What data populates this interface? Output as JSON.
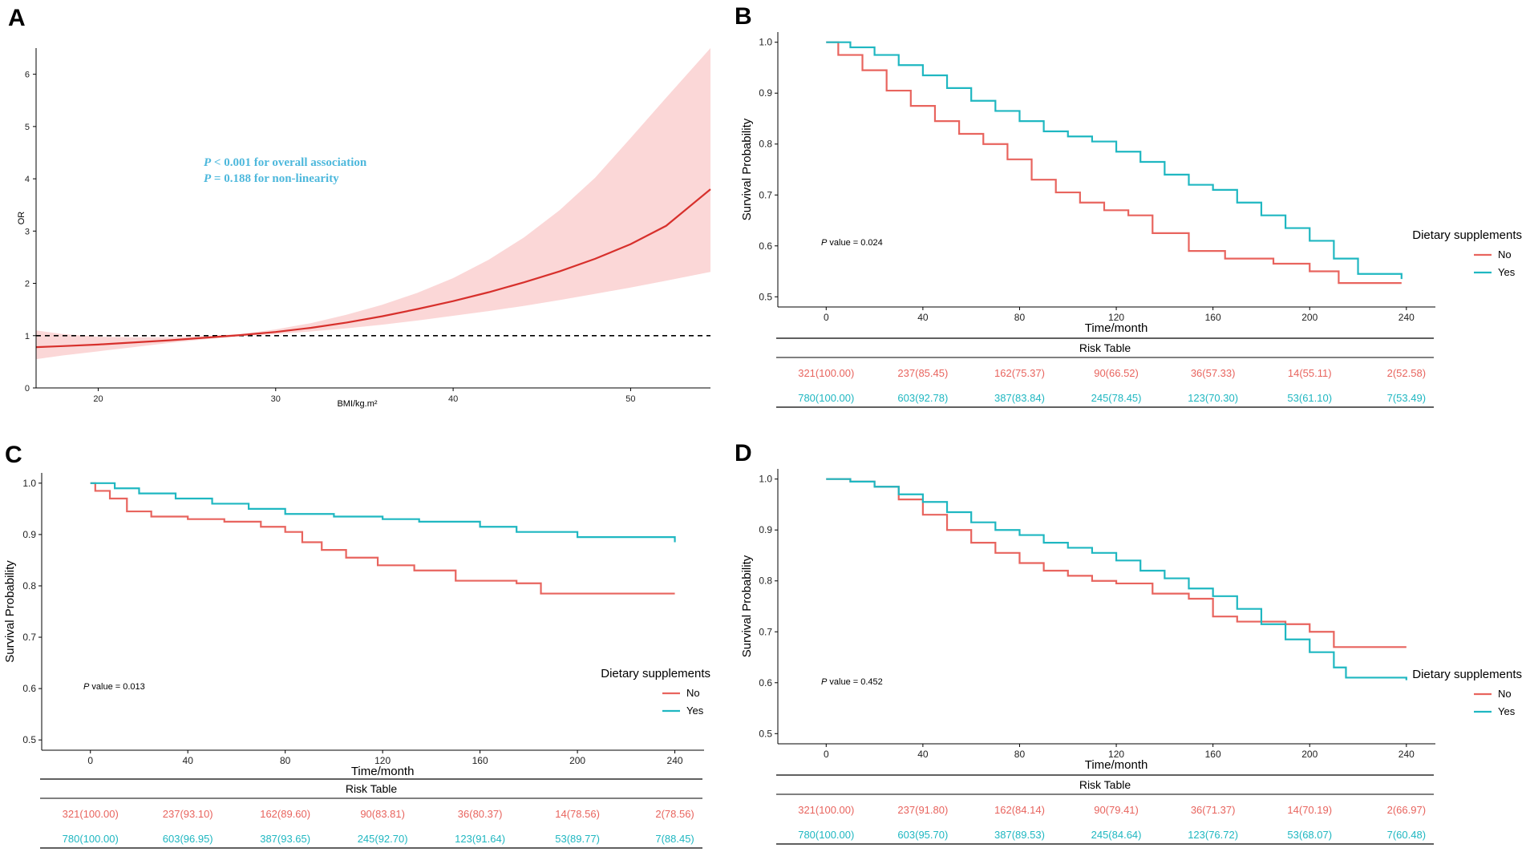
{
  "colors": {
    "no": "#e8645e",
    "yes": "#1fb7c1",
    "spline": "#d7302c",
    "ci": "#fbd7d7",
    "annot": "#4db8dc"
  },
  "chart_data": [
    {
      "id": "A",
      "type": "line",
      "panel_label": "A",
      "xlabel": "BMI/kg.m²",
      "ylabel": "OR",
      "xlim": [
        16.5,
        54.5
      ],
      "ylim": [
        0,
        6.5
      ],
      "xticks": [
        20,
        30,
        40,
        50
      ],
      "yticks": [
        0,
        1,
        2,
        3,
        4,
        5,
        6
      ],
      "reference_line": 1,
      "annotations": [
        {
          "p": "P",
          "text": " < 0.001 for overall association"
        },
        {
          "p": "P",
          "text": " = 0.188 for non-linearity"
        }
      ],
      "curve": {
        "x": [
          16.5,
          18,
          20,
          22,
          24,
          26,
          28,
          30,
          32,
          34,
          36,
          38,
          40,
          42,
          44,
          46,
          48,
          50,
          52,
          54.5
        ],
        "or": [
          0.78,
          0.8,
          0.83,
          0.87,
          0.91,
          0.96,
          1.01,
          1.07,
          1.15,
          1.25,
          1.37,
          1.51,
          1.66,
          1.83,
          2.02,
          2.23,
          2.47,
          2.75,
          3.1,
          3.8
        ],
        "lower": [
          0.55,
          0.62,
          0.7,
          0.78,
          0.86,
          0.93,
          0.99,
          1.03,
          1.08,
          1.14,
          1.21,
          1.29,
          1.38,
          1.47,
          1.57,
          1.68,
          1.8,
          1.92,
          2.05,
          2.22
        ],
        "upper": [
          1.1,
          1.03,
          0.98,
          0.97,
          0.97,
          0.99,
          1.03,
          1.12,
          1.24,
          1.4,
          1.59,
          1.82,
          2.1,
          2.45,
          2.88,
          3.4,
          4.02,
          4.78,
          5.55,
          6.5
        ]
      }
    },
    {
      "id": "B",
      "type": "line",
      "panel_label": "B",
      "xlabel": "Time/month",
      "ylabel": "Survival Probability",
      "xlim": [
        -20,
        252
      ],
      "ylim": [
        0.48,
        1.02
      ],
      "xticks": [
        0,
        40,
        80,
        120,
        160,
        200,
        240
      ],
      "yticks": [
        0.5,
        0.6,
        0.7,
        0.8,
        0.9,
        1.0
      ],
      "p_value": {
        "p": "P",
        "text": " value = 0.024"
      },
      "legend": {
        "title": "Dietary supplements",
        "labels": [
          "No",
          "Yes"
        ]
      },
      "series": [
        {
          "name": "No",
          "x": [
            0,
            5,
            15,
            25,
            35,
            45,
            55,
            65,
            75,
            85,
            95,
            105,
            115,
            125,
            135,
            150,
            165,
            185,
            200,
            212,
            238
          ],
          "y": [
            1.0,
            0.975,
            0.945,
            0.905,
            0.875,
            0.845,
            0.82,
            0.8,
            0.77,
            0.73,
            0.705,
            0.685,
            0.67,
            0.66,
            0.625,
            0.59,
            0.575,
            0.565,
            0.55,
            0.527,
            0.527
          ]
        },
        {
          "name": "Yes",
          "x": [
            0,
            10,
            20,
            30,
            40,
            50,
            60,
            70,
            80,
            90,
            100,
            110,
            120,
            130,
            140,
            150,
            160,
            170,
            180,
            190,
            200,
            210,
            220,
            238
          ],
          "y": [
            1.0,
            0.99,
            0.975,
            0.955,
            0.935,
            0.91,
            0.885,
            0.865,
            0.845,
            0.825,
            0.815,
            0.805,
            0.785,
            0.765,
            0.74,
            0.72,
            0.71,
            0.685,
            0.66,
            0.635,
            0.61,
            0.575,
            0.545,
            0.535
          ]
        }
      ],
      "risk_table": {
        "title": "Risk Table",
        "rows": [
          {
            "name": "No",
            "cells": [
              "321(100.00)",
              "237(85.45)",
              "162(75.37)",
              "90(66.52)",
              "36(57.33)",
              "14(55.11)",
              "2(52.58)"
            ]
          },
          {
            "name": "Yes",
            "cells": [
              "780(100.00)",
              "603(92.78)",
              "387(83.84)",
              "245(78.45)",
              "123(70.30)",
              "53(61.10)",
              "7(53.49)"
            ]
          }
        ]
      }
    },
    {
      "id": "C",
      "type": "line",
      "panel_label": "C",
      "xlabel": "Time/month",
      "ylabel": "Survival Probability",
      "xlim": [
        -20,
        252
      ],
      "ylim": [
        0.48,
        1.02
      ],
      "xticks": [
        0,
        40,
        80,
        120,
        160,
        200,
        240
      ],
      "yticks": [
        0.5,
        0.6,
        0.7,
        0.8,
        0.9,
        1.0
      ],
      "p_value": {
        "p": "P",
        "text": " value = 0.013"
      },
      "legend": {
        "title": "Dietary supplements",
        "labels": [
          "No",
          "Yes"
        ]
      },
      "series": [
        {
          "name": "No",
          "x": [
            0,
            2,
            8,
            15,
            25,
            40,
            55,
            70,
            80,
            87,
            95,
            105,
            118,
            133,
            150,
            175,
            185,
            240
          ],
          "y": [
            1.0,
            0.985,
            0.97,
            0.945,
            0.935,
            0.93,
            0.925,
            0.915,
            0.905,
            0.885,
            0.87,
            0.855,
            0.84,
            0.83,
            0.81,
            0.805,
            0.785,
            0.785
          ]
        },
        {
          "name": "Yes",
          "x": [
            0,
            10,
            20,
            35,
            50,
            65,
            80,
            100,
            120,
            135,
            160,
            175,
            200,
            240
          ],
          "y": [
            1.0,
            0.99,
            0.98,
            0.97,
            0.96,
            0.95,
            0.94,
            0.935,
            0.93,
            0.925,
            0.915,
            0.905,
            0.895,
            0.885
          ]
        }
      ],
      "risk_table": {
        "title": "Risk Table",
        "rows": [
          {
            "name": "No",
            "cells": [
              "321(100.00)",
              "237(93.10)",
              "162(89.60)",
              "90(83.81)",
              "36(80.37)",
              "14(78.56)",
              "2(78.56)"
            ]
          },
          {
            "name": "Yes",
            "cells": [
              "780(100.00)",
              "603(96.95)",
              "387(93.65)",
              "245(92.70)",
              "123(91.64)",
              "53(89.77)",
              "7(88.45)"
            ]
          }
        ]
      }
    },
    {
      "id": "D",
      "type": "line",
      "panel_label": "D",
      "xlabel": "Time/month",
      "ylabel": "Survival Probability",
      "xlim": [
        -20,
        252
      ],
      "ylim": [
        0.48,
        1.02
      ],
      "xticks": [
        0,
        40,
        80,
        120,
        160,
        200,
        240
      ],
      "yticks": [
        0.5,
        0.6,
        0.7,
        0.8,
        0.9,
        1.0
      ],
      "p_value": {
        "p": "P",
        "text": " value = 0.452"
      },
      "legend": {
        "title": "Dietary supplements",
        "labels": [
          "No",
          "Yes"
        ]
      },
      "series": [
        {
          "name": "No",
          "x": [
            0,
            10,
            20,
            30,
            40,
            50,
            60,
            70,
            80,
            90,
            100,
            110,
            120,
            135,
            150,
            160,
            170,
            190,
            200,
            210,
            240
          ],
          "y": [
            1.0,
            0.995,
            0.985,
            0.96,
            0.93,
            0.9,
            0.875,
            0.855,
            0.835,
            0.82,
            0.81,
            0.8,
            0.795,
            0.775,
            0.765,
            0.73,
            0.72,
            0.715,
            0.7,
            0.67,
            0.67
          ]
        },
        {
          "name": "Yes",
          "x": [
            0,
            10,
            20,
            30,
            40,
            50,
            60,
            70,
            80,
            90,
            100,
            110,
            120,
            130,
            140,
            150,
            160,
            170,
            180,
            190,
            200,
            210,
            215,
            240
          ],
          "y": [
            1.0,
            0.995,
            0.985,
            0.97,
            0.955,
            0.935,
            0.915,
            0.9,
            0.89,
            0.875,
            0.865,
            0.855,
            0.84,
            0.82,
            0.805,
            0.785,
            0.77,
            0.745,
            0.715,
            0.685,
            0.66,
            0.63,
            0.61,
            0.605
          ]
        }
      ],
      "risk_table": {
        "title": "Risk Table",
        "rows": [
          {
            "name": "No",
            "cells": [
              "321(100.00)",
              "237(91.80)",
              "162(84.14)",
              "90(79.41)",
              "36(71.37)",
              "14(70.19)",
              "2(66.97)"
            ]
          },
          {
            "name": "Yes",
            "cells": [
              "780(100.00)",
              "603(95.70)",
              "387(89.53)",
              "245(84.64)",
              "123(76.72)",
              "53(68.07)",
              "7(60.48)"
            ]
          }
        ]
      }
    }
  ]
}
